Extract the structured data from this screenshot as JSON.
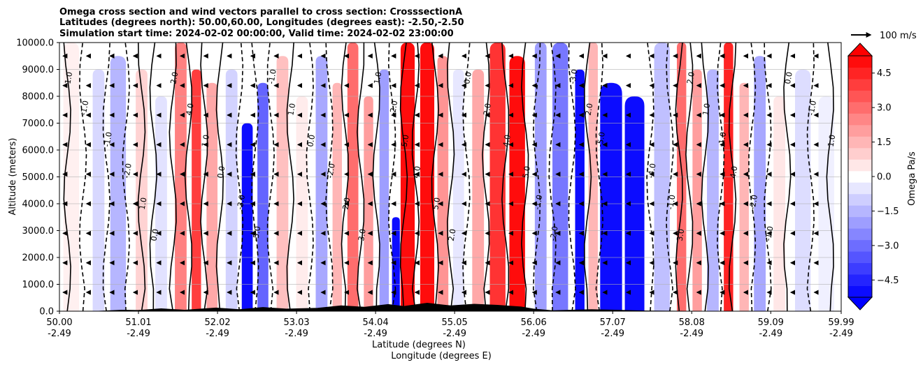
{
  "chart_data": {
    "type": "heatmap",
    "title_lines": [
      "Omega cross section and wind vectors parallel to cross section: CrosssectionA",
      "Latitudes (degrees north): 50.00,60.00, Longitudes (degrees east): -2.50,-2.50",
      "Simulation start time: 2024-02-02 00:00:00, Valid time: 2024-02-02 23:00:00"
    ],
    "xlabel_lat": "Latitude (degrees N)",
    "xlabel_lon": "Longitude (degrees E)",
    "ylabel": "Altitude (meters)",
    "xlim": [
      50.0,
      59.99
    ],
    "ylim": [
      0,
      10000
    ],
    "grid": true,
    "x_ticks": [
      {
        "value": 50.0,
        "lat": "50.00",
        "lon": "-2.49"
      },
      {
        "value": 51.01,
        "lat": "51.01",
        "lon": "-2.49"
      },
      {
        "value": 52.02,
        "lat": "52.02",
        "lon": "-2.49"
      },
      {
        "value": 53.03,
        "lat": "53.03",
        "lon": "-2.49"
      },
      {
        "value": 54.04,
        "lat": "54.04",
        "lon": "-2.49"
      },
      {
        "value": 55.05,
        "lat": "55.05",
        "lon": "-2.49"
      },
      {
        "value": 56.06,
        "lat": "56.06",
        "lon": "-2.49"
      },
      {
        "value": 57.07,
        "lat": "57.07",
        "lon": "-2.49"
      },
      {
        "value": 58.08,
        "lat": "58.08",
        "lon": "-2.49"
      },
      {
        "value": 59.09,
        "lat": "59.09",
        "lon": "-2.49"
      },
      {
        "value": 59.99,
        "lat": "59.99",
        "lon": "-2.49"
      }
    ],
    "y_ticks": [
      {
        "value": 0,
        "label": "0.0"
      },
      {
        "value": 1000,
        "label": "1000.0"
      },
      {
        "value": 2000,
        "label": "2000.0"
      },
      {
        "value": 3000,
        "label": "3000.0"
      },
      {
        "value": 4000,
        "label": "4000.0"
      },
      {
        "value": 5000,
        "label": "5000.0"
      },
      {
        "value": 6000,
        "label": "6000.0"
      },
      {
        "value": 7000,
        "label": "7000.0"
      },
      {
        "value": 8000,
        "label": "8000.0"
      },
      {
        "value": 9000,
        "label": "9000.0"
      },
      {
        "value": 10000,
        "label": "10000.0"
      }
    ],
    "colorbar": {
      "label": "Omega Pa/s",
      "range": [
        -5.25,
        5.25
      ],
      "extend": "both",
      "ticks": [
        {
          "value": 4.5,
          "label": "4.5"
        },
        {
          "value": 3.0,
          "label": "3.0"
        },
        {
          "value": 1.5,
          "label": "1.5"
        },
        {
          "value": 0.0,
          "label": "0.0"
        },
        {
          "value": -1.5,
          "label": "−1.5"
        },
        {
          "value": -3.0,
          "label": "−3.0"
        },
        {
          "value": -4.5,
          "label": "−4.5"
        }
      ]
    },
    "quiver_key": {
      "label": "100 m/s"
    },
    "omega_columns": [
      {
        "lat": 50.15,
        "width": 0.2,
        "omega": 0.3,
        "top": 10000
      },
      {
        "lat": 50.5,
        "width": 0.15,
        "omega": -0.8,
        "top": 9000
      },
      {
        "lat": 50.75,
        "width": 0.2,
        "omega": -1.5,
        "top": 9500
      },
      {
        "lat": 51.05,
        "width": 0.15,
        "omega": 0.9,
        "top": 9000
      },
      {
        "lat": 51.3,
        "width": 0.15,
        "omega": -0.6,
        "top": 8000
      },
      {
        "lat": 51.55,
        "width": 0.15,
        "omega": 2.6,
        "top": 10000
      },
      {
        "lat": 51.75,
        "width": 0.12,
        "omega": 4.0,
        "top": 9000
      },
      {
        "lat": 51.95,
        "width": 0.14,
        "omega": 1.8,
        "top": 8500
      },
      {
        "lat": 52.2,
        "width": 0.15,
        "omega": -0.9,
        "top": 9000
      },
      {
        "lat": 52.4,
        "width": 0.14,
        "omega": -5.0,
        "top": 7000
      },
      {
        "lat": 52.6,
        "width": 0.14,
        "omega": -3.2,
        "top": 8500
      },
      {
        "lat": 52.85,
        "width": 0.15,
        "omega": 1.3,
        "top": 9500
      },
      {
        "lat": 53.1,
        "width": 0.15,
        "omega": 0.4,
        "top": 8000
      },
      {
        "lat": 53.35,
        "width": 0.15,
        "omega": -1.8,
        "top": 9500
      },
      {
        "lat": 53.55,
        "width": 0.12,
        "omega": 1.5,
        "top": 8500
      },
      {
        "lat": 53.75,
        "width": 0.14,
        "omega": 3.0,
        "top": 10000
      },
      {
        "lat": 53.95,
        "width": 0.12,
        "omega": 2.0,
        "top": 8000
      },
      {
        "lat": 54.15,
        "width": 0.12,
        "omega": -2.0,
        "top": 9000
      },
      {
        "lat": 54.3,
        "width": 0.1,
        "omega": -5.0,
        "top": 3500
      },
      {
        "lat": 54.45,
        "width": 0.18,
        "omega": 5.0,
        "top": 10000
      },
      {
        "lat": 54.7,
        "width": 0.18,
        "omega": 5.0,
        "top": 10000
      },
      {
        "lat": 54.9,
        "width": 0.14,
        "omega": 2.2,
        "top": 9500
      },
      {
        "lat": 55.1,
        "width": 0.14,
        "omega": -0.5,
        "top": 9000
      },
      {
        "lat": 55.35,
        "width": 0.15,
        "omega": 1.8,
        "top": 9000
      },
      {
        "lat": 55.6,
        "width": 0.2,
        "omega": 4.2,
        "top": 10000
      },
      {
        "lat": 55.85,
        "width": 0.2,
        "omega": 5.0,
        "top": 9500
      },
      {
        "lat": 56.15,
        "width": 0.15,
        "omega": -2.0,
        "top": 10000
      },
      {
        "lat": 56.4,
        "width": 0.2,
        "omega": -2.8,
        "top": 10000
      },
      {
        "lat": 56.65,
        "width": 0.12,
        "omega": -5.0,
        "top": 9000
      },
      {
        "lat": 56.82,
        "width": 0.12,
        "omega": 1.5,
        "top": 10000
      },
      {
        "lat": 57.05,
        "width": 0.28,
        "omega": -5.0,
        "top": 8500
      },
      {
        "lat": 57.35,
        "width": 0.25,
        "omega": -5.0,
        "top": 8000
      },
      {
        "lat": 57.7,
        "width": 0.2,
        "omega": -1.3,
        "top": 10000
      },
      {
        "lat": 57.95,
        "width": 0.12,
        "omega": 3.0,
        "top": 10000
      },
      {
        "lat": 58.15,
        "width": 0.12,
        "omega": 2.0,
        "top": 9000
      },
      {
        "lat": 58.35,
        "width": 0.15,
        "omega": -1.5,
        "top": 9000
      },
      {
        "lat": 58.55,
        "width": 0.12,
        "omega": 4.5,
        "top": 10000
      },
      {
        "lat": 58.75,
        "width": 0.12,
        "omega": 1.5,
        "top": 8500
      },
      {
        "lat": 58.95,
        "width": 0.15,
        "omega": -1.8,
        "top": 9500
      },
      {
        "lat": 59.2,
        "width": 0.15,
        "omega": 0.5,
        "top": 8000
      },
      {
        "lat": 59.5,
        "width": 0.2,
        "omega": -0.7,
        "top": 9000
      },
      {
        "lat": 59.8,
        "width": 0.2,
        "omega": -0.3,
        "top": 8000
      }
    ],
    "contour_lines": [
      {
        "lat": 50.1,
        "style": "solid",
        "label": "1.0"
      },
      {
        "lat": 50.3,
        "style": "dashed",
        "label": "-1.0"
      },
      {
        "lat": 50.6,
        "style": "dashed",
        "label": "-1.0"
      },
      {
        "lat": 50.85,
        "style": "dashed",
        "label": "-2.0"
      },
      {
        "lat": 51.05,
        "style": "solid",
        "label": "1.0"
      },
      {
        "lat": 51.2,
        "style": "solid",
        "label": "0.0"
      },
      {
        "lat": 51.45,
        "style": "solid",
        "label": "2.0"
      },
      {
        "lat": 51.65,
        "style": "solid",
        "label": "4.0"
      },
      {
        "lat": 51.85,
        "style": "solid",
        "label": "1.0"
      },
      {
        "lat": 52.05,
        "style": "solid",
        "label": "0.0"
      },
      {
        "lat": 52.3,
        "style": "dashed",
        "label": "-3.0"
      },
      {
        "lat": 52.5,
        "style": "dashed",
        "label": "-5.0"
      },
      {
        "lat": 52.7,
        "style": "dashed",
        "label": "-1.0"
      },
      {
        "lat": 52.95,
        "style": "solid",
        "label": "1.0"
      },
      {
        "lat": 53.2,
        "style": "dashed",
        "label": "0.0"
      },
      {
        "lat": 53.45,
        "style": "dashed",
        "label": "-2.0"
      },
      {
        "lat": 53.65,
        "style": "solid",
        "label": "2.0"
      },
      {
        "lat": 53.85,
        "style": "solid",
        "label": "3.0"
      },
      {
        "lat": 54.05,
        "style": "solid",
        "label": "1.0"
      },
      {
        "lat": 54.25,
        "style": "dashed",
        "label": "-2.0"
      },
      {
        "lat": 54.4,
        "style": "solid",
        "label": "5.0"
      },
      {
        "lat": 54.55,
        "style": "solid",
        "label": "4.0"
      },
      {
        "lat": 54.8,
        "style": "solid",
        "label": "5.0"
      },
      {
        "lat": 55.0,
        "style": "solid",
        "label": "2.0"
      },
      {
        "lat": 55.2,
        "style": "dashed",
        "label": "0.0"
      },
      {
        "lat": 55.45,
        "style": "solid",
        "label": "2.0"
      },
      {
        "lat": 55.7,
        "style": "solid",
        "label": "4.0"
      },
      {
        "lat": 55.95,
        "style": "solid",
        "label": "5.0"
      },
      {
        "lat": 56.1,
        "style": "dashed",
        "label": "-1.0"
      },
      {
        "lat": 56.3,
        "style": "dashed",
        "label": "-2.0"
      },
      {
        "lat": 56.55,
        "style": "dashed",
        "label": "-3.0"
      },
      {
        "lat": 56.75,
        "style": "solid",
        "label": "2.0"
      },
      {
        "lat": 56.9,
        "style": "dashed",
        "label": "-5.0"
      },
      {
        "lat": 57.55,
        "style": "dashed",
        "label": "-4.0"
      },
      {
        "lat": 57.8,
        "style": "dashed",
        "label": "-1.0"
      },
      {
        "lat": 57.92,
        "style": "solid",
        "label": "3.0"
      },
      {
        "lat": 58.05,
        "style": "solid",
        "label": "2.0"
      },
      {
        "lat": 58.25,
        "style": "solid",
        "label": "1.0"
      },
      {
        "lat": 58.45,
        "style": "dashed",
        "label": "-1.0"
      },
      {
        "lat": 58.6,
        "style": "solid",
        "label": "4.0"
      },
      {
        "lat": 58.85,
        "style": "dashed",
        "label": "-2.0"
      },
      {
        "lat": 59.05,
        "style": "dashed",
        "label": "-1.0"
      },
      {
        "lat": 59.3,
        "style": "solid",
        "label": "0.0"
      },
      {
        "lat": 59.6,
        "style": "dashed",
        "label": "-1.0"
      },
      {
        "lat": 59.85,
        "style": "solid",
        "label": "1.0"
      }
    ],
    "terrain": [
      {
        "lat": 50.0,
        "alt": 0
      },
      {
        "lat": 50.5,
        "alt": 0
      },
      {
        "lat": 50.8,
        "alt": 40
      },
      {
        "lat": 51.0,
        "alt": 30
      },
      {
        "lat": 51.3,
        "alt": 90
      },
      {
        "lat": 51.6,
        "alt": 40
      },
      {
        "lat": 52.0,
        "alt": 120
      },
      {
        "lat": 52.3,
        "alt": 60
      },
      {
        "lat": 52.6,
        "alt": 140
      },
      {
        "lat": 52.9,
        "alt": 80
      },
      {
        "lat": 53.3,
        "alt": 110
      },
      {
        "lat": 53.6,
        "alt": 200
      },
      {
        "lat": 53.9,
        "alt": 150
      },
      {
        "lat": 54.2,
        "alt": 250
      },
      {
        "lat": 54.4,
        "alt": 180
      },
      {
        "lat": 54.7,
        "alt": 300
      },
      {
        "lat": 55.0,
        "alt": 200
      },
      {
        "lat": 55.3,
        "alt": 260
      },
      {
        "lat": 55.6,
        "alt": 220
      },
      {
        "lat": 55.9,
        "alt": 160
      },
      {
        "lat": 56.06,
        "alt": 80
      },
      {
        "lat": 56.3,
        "alt": 20
      },
      {
        "lat": 56.8,
        "alt": 60
      },
      {
        "lat": 57.1,
        "alt": 40
      },
      {
        "lat": 57.5,
        "alt": 10
      },
      {
        "lat": 58.0,
        "alt": 0
      },
      {
        "lat": 59.99,
        "alt": 0
      }
    ],
    "wind_rows": [
      9500,
      8400,
      7300,
      6200,
      5100,
      4000,
      2900,
      1800,
      700
    ],
    "wind_cols": [
      50.1,
      50.4,
      50.7,
      51.0,
      51.3,
      51.6,
      51.9,
      52.2,
      52.5,
      52.8,
      53.1,
      53.4,
      53.7,
      54.0,
      54.3,
      54.6,
      54.9,
      55.2,
      55.5,
      55.8,
      56.1,
      56.4,
      56.7,
      57.0,
      57.3,
      57.6,
      57.9,
      58.2,
      58.5,
      58.8,
      59.1,
      59.4,
      59.7
    ],
    "wind_speed_ms": -20
  }
}
